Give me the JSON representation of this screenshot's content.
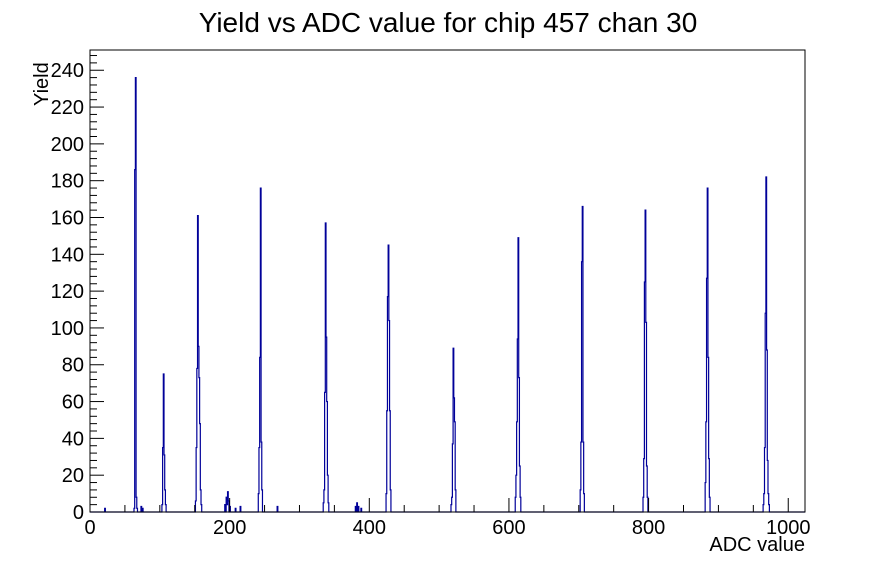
{
  "title": "Yield vs ADC value for chip 457 chan 30",
  "chart_data": {
    "type": "line",
    "style": "histogram-step",
    "title": "Yield vs ADC value for chip 457 chan 30",
    "xlabel": "ADC value",
    "ylabel": "Yield",
    "xlim": [
      0,
      1024
    ],
    "ylim": [
      0,
      251
    ],
    "grid": false,
    "legend": false,
    "x_major_ticks": [
      0,
      200,
      400,
      600,
      800,
      1000
    ],
    "x_minor_step": 50,
    "y_major_ticks": [
      0,
      20,
      40,
      60,
      80,
      100,
      120,
      140,
      160,
      180,
      200,
      220,
      240
    ],
    "y_minor_step": 4,
    "line_color": "#000099",
    "axis_color": "#000000",
    "background_color": "#ffffff",
    "bins": [
      [
        21,
        2
      ],
      [
        63,
        2
      ],
      [
        64,
        186
      ],
      [
        65,
        236
      ],
      [
        66,
        8
      ],
      [
        67,
        2
      ],
      [
        73,
        3
      ],
      [
        75,
        2
      ],
      [
        103,
        4
      ],
      [
        104,
        35
      ],
      [
        105,
        75
      ],
      [
        106,
        31
      ],
      [
        107,
        12
      ],
      [
        108,
        4
      ],
      [
        151,
        6
      ],
      [
        152,
        35
      ],
      [
        153,
        78
      ],
      [
        154,
        161
      ],
      [
        155,
        90
      ],
      [
        156,
        73
      ],
      [
        157,
        48
      ],
      [
        158,
        12
      ],
      [
        159,
        4
      ],
      [
        193,
        4
      ],
      [
        195,
        8
      ],
      [
        196,
        4
      ],
      [
        197,
        11
      ],
      [
        198,
        6
      ],
      [
        200,
        3
      ],
      [
        208,
        2
      ],
      [
        215,
        3
      ],
      [
        241,
        10
      ],
      [
        242,
        35
      ],
      [
        243,
        84
      ],
      [
        244,
        176
      ],
      [
        245,
        38
      ],
      [
        246,
        12
      ],
      [
        268,
        3
      ],
      [
        334,
        5
      ],
      [
        335,
        12
      ],
      [
        336,
        65
      ],
      [
        337,
        157
      ],
      [
        338,
        95
      ],
      [
        339,
        60
      ],
      [
        340,
        20
      ],
      [
        341,
        5
      ],
      [
        380,
        3
      ],
      [
        382,
        5
      ],
      [
        384,
        3
      ],
      [
        388,
        2
      ],
      [
        424,
        10
      ],
      [
        425,
        55
      ],
      [
        426,
        117
      ],
      [
        427,
        145
      ],
      [
        428,
        104
      ],
      [
        429,
        55
      ],
      [
        430,
        12
      ],
      [
        517,
        4
      ],
      [
        518,
        8
      ],
      [
        519,
        37
      ],
      [
        520,
        89
      ],
      [
        521,
        62
      ],
      [
        522,
        49
      ],
      [
        523,
        12
      ],
      [
        609,
        8
      ],
      [
        610,
        20
      ],
      [
        611,
        49
      ],
      [
        612,
        94
      ],
      [
        613,
        149
      ],
      [
        614,
        73
      ],
      [
        615,
        25
      ],
      [
        616,
        8
      ],
      [
        702,
        12
      ],
      [
        703,
        38
      ],
      [
        704,
        136
      ],
      [
        705,
        166
      ],
      [
        706,
        38
      ],
      [
        707,
        10
      ],
      [
        792,
        8
      ],
      [
        793,
        29
      ],
      [
        794,
        125
      ],
      [
        795,
        164
      ],
      [
        796,
        103
      ],
      [
        797,
        25
      ],
      [
        798,
        8
      ],
      [
        881,
        16
      ],
      [
        882,
        49
      ],
      [
        883,
        127
      ],
      [
        884,
        176
      ],
      [
        885,
        84
      ],
      [
        886,
        29
      ],
      [
        887,
        8
      ],
      [
        964,
        4
      ],
      [
        965,
        10
      ],
      [
        966,
        35
      ],
      [
        967,
        108
      ],
      [
        968,
        182
      ],
      [
        969,
        88
      ],
      [
        970,
        28
      ],
      [
        971,
        10
      ],
      [
        972,
        4
      ]
    ]
  }
}
